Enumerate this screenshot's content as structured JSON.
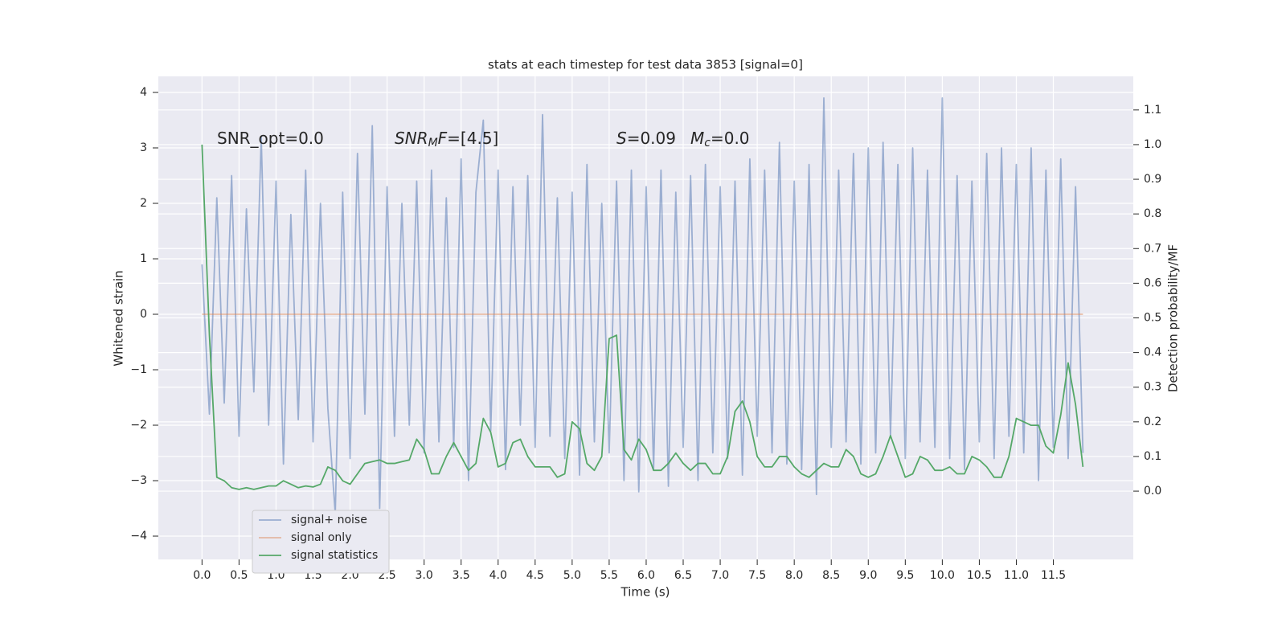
{
  "chart_data": {
    "type": "line",
    "title": "stats at each timestep for test data 3853 [signal=0]",
    "xlabel": "Time (s)",
    "ylabel": "Whitened strain",
    "y2label": "Detection probability/MF",
    "grid": true,
    "legend": "lower left",
    "xlim": [
      -0.59,
      12.58
    ],
    "ylim": [
      -4.42,
      4.29
    ],
    "y2lim": [
      -0.197,
      1.197
    ],
    "xticks": [
      {
        "value": 0,
        "label": "0.0"
      },
      {
        "value": 0.5,
        "label": "0.5"
      },
      {
        "value": 1,
        "label": "1.0"
      },
      {
        "value": 1.5,
        "label": "1.5"
      },
      {
        "value": 2,
        "label": "2.0"
      },
      {
        "value": 2.5,
        "label": "2.5"
      },
      {
        "value": 3,
        "label": "3.0"
      },
      {
        "value": 3.5,
        "label": "3.5"
      },
      {
        "value": 4,
        "label": "4.0"
      },
      {
        "value": 4.5,
        "label": "4.5"
      },
      {
        "value": 5,
        "label": "5.0"
      },
      {
        "value": 5.5,
        "label": "5.5"
      },
      {
        "value": 6,
        "label": "6.0"
      },
      {
        "value": 6.5,
        "label": "6.5"
      },
      {
        "value": 7,
        "label": "7.0"
      },
      {
        "value": 7.5,
        "label": "7.5"
      },
      {
        "value": 8,
        "label": "8.0"
      },
      {
        "value": 8.5,
        "label": "8.5"
      },
      {
        "value": 9,
        "label": "9.0"
      },
      {
        "value": 9.5,
        "label": "9.5"
      },
      {
        "value": 10,
        "label": "10.0"
      },
      {
        "value": 10.5,
        "label": "10.5"
      },
      {
        "value": 11,
        "label": "11.0"
      },
      {
        "value": 11.5,
        "label": "11.5"
      }
    ],
    "yticks": [
      {
        "value": -4,
        "label": "−4"
      },
      {
        "value": -3,
        "label": "−3"
      },
      {
        "value": -2,
        "label": "−2"
      },
      {
        "value": -1,
        "label": "−1"
      },
      0,
      1,
      2,
      3,
      4
    ],
    "y2ticks": [
      {
        "value": 0,
        "label": "0.0"
      },
      {
        "value": 0.1,
        "label": "0.1"
      },
      {
        "value": 0.2,
        "label": "0.2"
      },
      {
        "value": 0.3,
        "label": "0.3"
      },
      {
        "value": 0.4,
        "label": "0.4"
      },
      {
        "value": 0.5,
        "label": "0.5"
      },
      {
        "value": 0.6,
        "label": "0.6"
      },
      {
        "value": 0.7,
        "label": "0.7"
      },
      {
        "value": 0.8,
        "label": "0.8"
      },
      {
        "value": 0.9,
        "label": "0.9"
      },
      {
        "value": 1.0,
        "label": "1.0"
      },
      {
        "value": 1.1,
        "label": "1.1"
      }
    ],
    "annotations": [
      {
        "segments": [
          {
            "text": "SNR_opt=0.0"
          }
        ]
      },
      {
        "segments": [
          {
            "text": "SNR",
            "italic": true
          },
          {
            "text": "M",
            "italic": true,
            "sub": true
          },
          {
            "text": "F",
            "italic": true
          },
          {
            "text": "=[4.5]"
          }
        ]
      },
      {
        "segments": [
          {
            "text": "S",
            "italic": true
          },
          {
            "text": "=0.09"
          }
        ]
      },
      {
        "segments": [
          {
            "text": "M",
            "italic": true
          },
          {
            "text": "c",
            "italic": true,
            "sub": true
          },
          {
            "text": "=0.0"
          }
        ]
      }
    ],
    "x": [
      0.0,
      0.1,
      0.2,
      0.3,
      0.4,
      0.5,
      0.6,
      0.7,
      0.8,
      0.9,
      1.0,
      1.1,
      1.2,
      1.3,
      1.4,
      1.5,
      1.6,
      1.7,
      1.8,
      1.9,
      2.0,
      2.1,
      2.2,
      2.3,
      2.4,
      2.5,
      2.6,
      2.7,
      2.8,
      2.9,
      3.0,
      3.1,
      3.2,
      3.3,
      3.4,
      3.5,
      3.6,
      3.7,
      3.8,
      3.9,
      4.0,
      4.1,
      4.2,
      4.3,
      4.4,
      4.5,
      4.6,
      4.7,
      4.8,
      4.9,
      5.0,
      5.1,
      5.2,
      5.3,
      5.4,
      5.5,
      5.6,
      5.7,
      5.8,
      5.9,
      6.0,
      6.1,
      6.2,
      6.3,
      6.4,
      6.5,
      6.6,
      6.7,
      6.8,
      6.9,
      7.0,
      7.1,
      7.2,
      7.3,
      7.4,
      7.5,
      7.6,
      7.7,
      7.8,
      7.9,
      8.0,
      8.1,
      8.2,
      8.3,
      8.4,
      8.5,
      8.6,
      8.7,
      8.8,
      8.9,
      9.0,
      9.1,
      9.2,
      9.3,
      9.4,
      9.5,
      9.6,
      9.7,
      9.8,
      9.9,
      10.0,
      10.1,
      10.2,
      10.3,
      10.4,
      10.5,
      10.6,
      10.7,
      10.8,
      10.9,
      11.0,
      11.1,
      11.2,
      11.3,
      11.4,
      11.5,
      11.6,
      11.7,
      11.8,
      11.9
    ],
    "series": [
      {
        "name": "signal+ noise",
        "color": "#4c72b0",
        "alpha": 0.5,
        "axis": "y",
        "values": [
          0.9,
          -1.8,
          2.1,
          -1.6,
          2.5,
          -2.2,
          1.9,
          -1.4,
          3.2,
          -2.0,
          2.4,
          -2.7,
          1.8,
          -1.9,
          2.6,
          -2.3,
          2.0,
          -1.7,
          -3.6,
          2.2,
          -2.6,
          2.9,
          -1.8,
          3.4,
          -3.5,
          2.3,
          -2.2,
          2.0,
          -2.0,
          2.4,
          -2.5,
          2.6,
          -2.3,
          2.1,
          -2.4,
          2.8,
          -3.0,
          2.2,
          3.5,
          -2.1,
          2.6,
          -2.8,
          2.3,
          -2.0,
          2.5,
          -2.4,
          3.6,
          -2.2,
          2.1,
          -2.6,
          2.2,
          -2.9,
          2.7,
          -2.3,
          2.0,
          -2.5,
          2.4,
          -3.0,
          2.6,
          -3.2,
          2.3,
          -2.8,
          2.6,
          -3.1,
          2.2,
          -2.4,
          2.5,
          -3.0,
          2.7,
          -2.5,
          2.3,
          -2.6,
          2.4,
          -2.9,
          2.8,
          -2.2,
          2.6,
          -2.5,
          3.1,
          -2.7,
          2.4,
          -2.8,
          2.7,
          -3.25,
          3.9,
          -2.4,
          2.6,
          -2.3,
          2.9,
          -2.7,
          3.0,
          -2.5,
          3.1,
          -2.2,
          2.7,
          -2.6,
          3.0,
          -2.3,
          2.6,
          -2.4,
          3.9,
          -2.6,
          2.5,
          -2.8,
          2.4,
          -2.3,
          2.9,
          -2.6,
          3.0,
          -2.2,
          2.7,
          -2.5,
          3.0,
          -3.0,
          2.6,
          -2.4,
          2.8,
          -2.6,
          2.3,
          -2.5
        ]
      },
      {
        "name": "signal only",
        "color": "#dd8452",
        "alpha": 0.5,
        "axis": "y",
        "x": [
          0.0,
          11.9
        ],
        "values": [
          0,
          0
        ]
      },
      {
        "name": "signal statistics",
        "color": "#55a868",
        "alpha": 1,
        "axis": "y2",
        "values": [
          1.0,
          0.45,
          0.04,
          0.03,
          0.01,
          0.005,
          0.01,
          0.005,
          0.01,
          0.015,
          0.015,
          0.03,
          0.02,
          0.01,
          0.015,
          0.012,
          0.02,
          0.07,
          0.06,
          0.03,
          0.02,
          0.05,
          0.08,
          0.085,
          0.09,
          0.08,
          0.08,
          0.085,
          0.09,
          0.15,
          0.12,
          0.05,
          0.05,
          0.1,
          0.14,
          0.1,
          0.06,
          0.08,
          0.21,
          0.17,
          0.07,
          0.08,
          0.14,
          0.15,
          0.1,
          0.07,
          0.07,
          0.07,
          0.04,
          0.05,
          0.2,
          0.18,
          0.08,
          0.06,
          0.1,
          0.44,
          0.45,
          0.12,
          0.09,
          0.15,
          0.12,
          0.06,
          0.06,
          0.08,
          0.11,
          0.08,
          0.06,
          0.08,
          0.08,
          0.05,
          0.05,
          0.1,
          0.23,
          0.26,
          0.2,
          0.1,
          0.07,
          0.07,
          0.1,
          0.1,
          0.07,
          0.05,
          0.04,
          0.06,
          0.08,
          0.07,
          0.07,
          0.12,
          0.1,
          0.05,
          0.04,
          0.05,
          0.1,
          0.16,
          0.1,
          0.04,
          0.05,
          0.1,
          0.09,
          0.06,
          0.06,
          0.07,
          0.05,
          0.05,
          0.1,
          0.09,
          0.07,
          0.04,
          0.04,
          0.1,
          0.21,
          0.2,
          0.19,
          0.19,
          0.13,
          0.11,
          0.22,
          0.37,
          0.25,
          0.07
        ]
      }
    ]
  }
}
